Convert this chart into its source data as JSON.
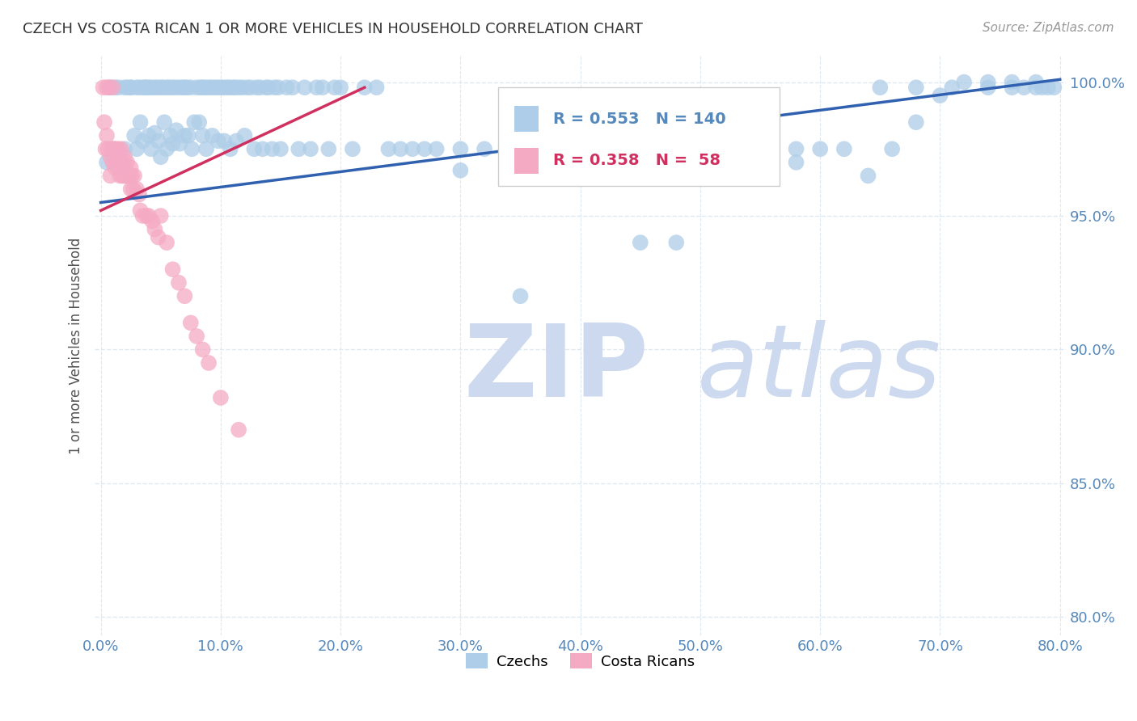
{
  "title": "CZECH VS COSTA RICAN 1 OR MORE VEHICLES IN HOUSEHOLD CORRELATION CHART",
  "source": "Source: ZipAtlas.com",
  "ylabel": "1 or more Vehicles in Household",
  "ytick_labels": [
    "80.0%",
    "85.0%",
    "90.0%",
    "95.0%",
    "100.0%"
  ],
  "ytick_values": [
    0.8,
    0.85,
    0.9,
    0.95,
    1.0
  ],
  "xlim": [
    -0.005,
    0.805
  ],
  "ylim": [
    0.793,
    1.01
  ],
  "legend_blue_R": "R = 0.553",
  "legend_blue_N": "N = 140",
  "legend_pink_R": "R = 0.358",
  "legend_pink_N": "N =  58",
  "legend_blue_label": "Czechs",
  "legend_pink_label": "Costa Ricans",
  "blue_color": "#aecde8",
  "pink_color": "#f5aac4",
  "blue_line_color": "#3060b0",
  "pink_line_color": "#d03060",
  "watermark_zip": "ZIP",
  "watermark_atlas": "atlas",
  "watermark_color": "#ccd9ee",
  "blue_trendline_x": [
    0.0,
    0.8
  ],
  "blue_trendline_y": [
    0.955,
    1.001
  ],
  "pink_trendline_x": [
    0.0,
    0.22
  ],
  "pink_trendline_y": [
    0.952,
    0.998
  ],
  "background_color": "#ffffff",
  "grid_color": "#dde8f0",
  "title_color": "#333333",
  "tick_color": "#5588bb",
  "blue_scatter_x": [
    0.005,
    0.008,
    0.01,
    0.012,
    0.015,
    0.018,
    0.02,
    0.02,
    0.022,
    0.025,
    0.025,
    0.028,
    0.03,
    0.03,
    0.032,
    0.033,
    0.035,
    0.035,
    0.037,
    0.038,
    0.04,
    0.04,
    0.042,
    0.042,
    0.045,
    0.045,
    0.047,
    0.048,
    0.05,
    0.05,
    0.052,
    0.053,
    0.055,
    0.055,
    0.057,
    0.058,
    0.06,
    0.06,
    0.062,
    0.063,
    0.065,
    0.066,
    0.068,
    0.07,
    0.07,
    0.072,
    0.073,
    0.075,
    0.076,
    0.078,
    0.08,
    0.082,
    0.083,
    0.085,
    0.085,
    0.087,
    0.088,
    0.09,
    0.092,
    0.093,
    0.095,
    0.097,
    0.098,
    0.1,
    0.102,
    0.103,
    0.105,
    0.107,
    0.108,
    0.11,
    0.112,
    0.113,
    0.115,
    0.118,
    0.12,
    0.122,
    0.125,
    0.128,
    0.13,
    0.133,
    0.135,
    0.138,
    0.14,
    0.143,
    0.145,
    0.148,
    0.15,
    0.155,
    0.16,
    0.165,
    0.17,
    0.175,
    0.18,
    0.185,
    0.19,
    0.195,
    0.2,
    0.21,
    0.22,
    0.23,
    0.24,
    0.25,
    0.26,
    0.27,
    0.28,
    0.3,
    0.32,
    0.35,
    0.38,
    0.42,
    0.46,
    0.5,
    0.54,
    0.58,
    0.62,
    0.65,
    0.68,
    0.71,
    0.74,
    0.76,
    0.77,
    0.78,
    0.785,
    0.79,
    0.795,
    0.64,
    0.66,
    0.68,
    0.7,
    0.72,
    0.74,
    0.76,
    0.78,
    0.55,
    0.58,
    0.6,
    0.45,
    0.48,
    0.35,
    0.3
  ],
  "blue_scatter_y": [
    0.97,
    0.998,
    0.975,
    0.998,
    0.998,
    0.968,
    0.998,
    0.975,
    0.998,
    0.998,
    0.998,
    0.98,
    0.998,
    0.975,
    0.998,
    0.985,
    0.998,
    0.978,
    0.998,
    0.998,
    0.998,
    0.98,
    0.998,
    0.975,
    0.998,
    0.981,
    0.998,
    0.978,
    0.998,
    0.972,
    0.998,
    0.985,
    0.998,
    0.975,
    0.998,
    0.98,
    0.998,
    0.977,
    0.998,
    0.982,
    0.998,
    0.977,
    0.998,
    0.998,
    0.98,
    0.998,
    0.98,
    0.998,
    0.975,
    0.985,
    0.998,
    0.985,
    0.998,
    0.998,
    0.98,
    0.998,
    0.975,
    0.998,
    0.998,
    0.98,
    0.998,
    0.998,
    0.978,
    0.998,
    0.998,
    0.978,
    0.998,
    0.998,
    0.975,
    0.998,
    0.998,
    0.978,
    0.998,
    0.998,
    0.98,
    0.998,
    0.998,
    0.975,
    0.998,
    0.998,
    0.975,
    0.998,
    0.998,
    0.975,
    0.998,
    0.998,
    0.975,
    0.998,
    0.998,
    0.975,
    0.998,
    0.975,
    0.998,
    0.998,
    0.975,
    0.998,
    0.998,
    0.975,
    0.998,
    0.998,
    0.975,
    0.975,
    0.975,
    0.975,
    0.975,
    0.975,
    0.975,
    0.975,
    0.975,
    0.975,
    0.975,
    0.975,
    0.975,
    0.975,
    0.975,
    0.998,
    0.998,
    0.998,
    0.998,
    0.998,
    0.998,
    0.998,
    0.998,
    0.998,
    0.998,
    0.965,
    0.975,
    0.985,
    0.995,
    1.0,
    1.0,
    1.0,
    1.0,
    0.972,
    0.97,
    0.975,
    0.94,
    0.94,
    0.92,
    0.967
  ],
  "pink_scatter_x": [
    0.002,
    0.003,
    0.004,
    0.005,
    0.005,
    0.006,
    0.007,
    0.008,
    0.008,
    0.009,
    0.01,
    0.01,
    0.011,
    0.012,
    0.012,
    0.013,
    0.013,
    0.014,
    0.015,
    0.015,
    0.016,
    0.017,
    0.017,
    0.018,
    0.018,
    0.019,
    0.02,
    0.02,
    0.021,
    0.022,
    0.022,
    0.023,
    0.024,
    0.025,
    0.025,
    0.026,
    0.027,
    0.028,
    0.03,
    0.032,
    0.033,
    0.035,
    0.038,
    0.04,
    0.043,
    0.045,
    0.048,
    0.05,
    0.055,
    0.06,
    0.065,
    0.07,
    0.075,
    0.08,
    0.085,
    0.09,
    0.1,
    0.115
  ],
  "pink_scatter_y": [
    0.998,
    0.985,
    0.975,
    0.998,
    0.98,
    0.975,
    0.998,
    0.972,
    0.965,
    0.975,
    0.998,
    0.97,
    0.975,
    0.968,
    0.975,
    0.97,
    0.975,
    0.97,
    0.968,
    0.975,
    0.965,
    0.97,
    0.975,
    0.965,
    0.97,
    0.965,
    0.968,
    0.972,
    0.965,
    0.965,
    0.97,
    0.965,
    0.965,
    0.96,
    0.968,
    0.965,
    0.96,
    0.965,
    0.96,
    0.958,
    0.952,
    0.95,
    0.95,
    0.95,
    0.948,
    0.945,
    0.942,
    0.95,
    0.94,
    0.93,
    0.925,
    0.92,
    0.91,
    0.905,
    0.9,
    0.895,
    0.882,
    0.87
  ]
}
